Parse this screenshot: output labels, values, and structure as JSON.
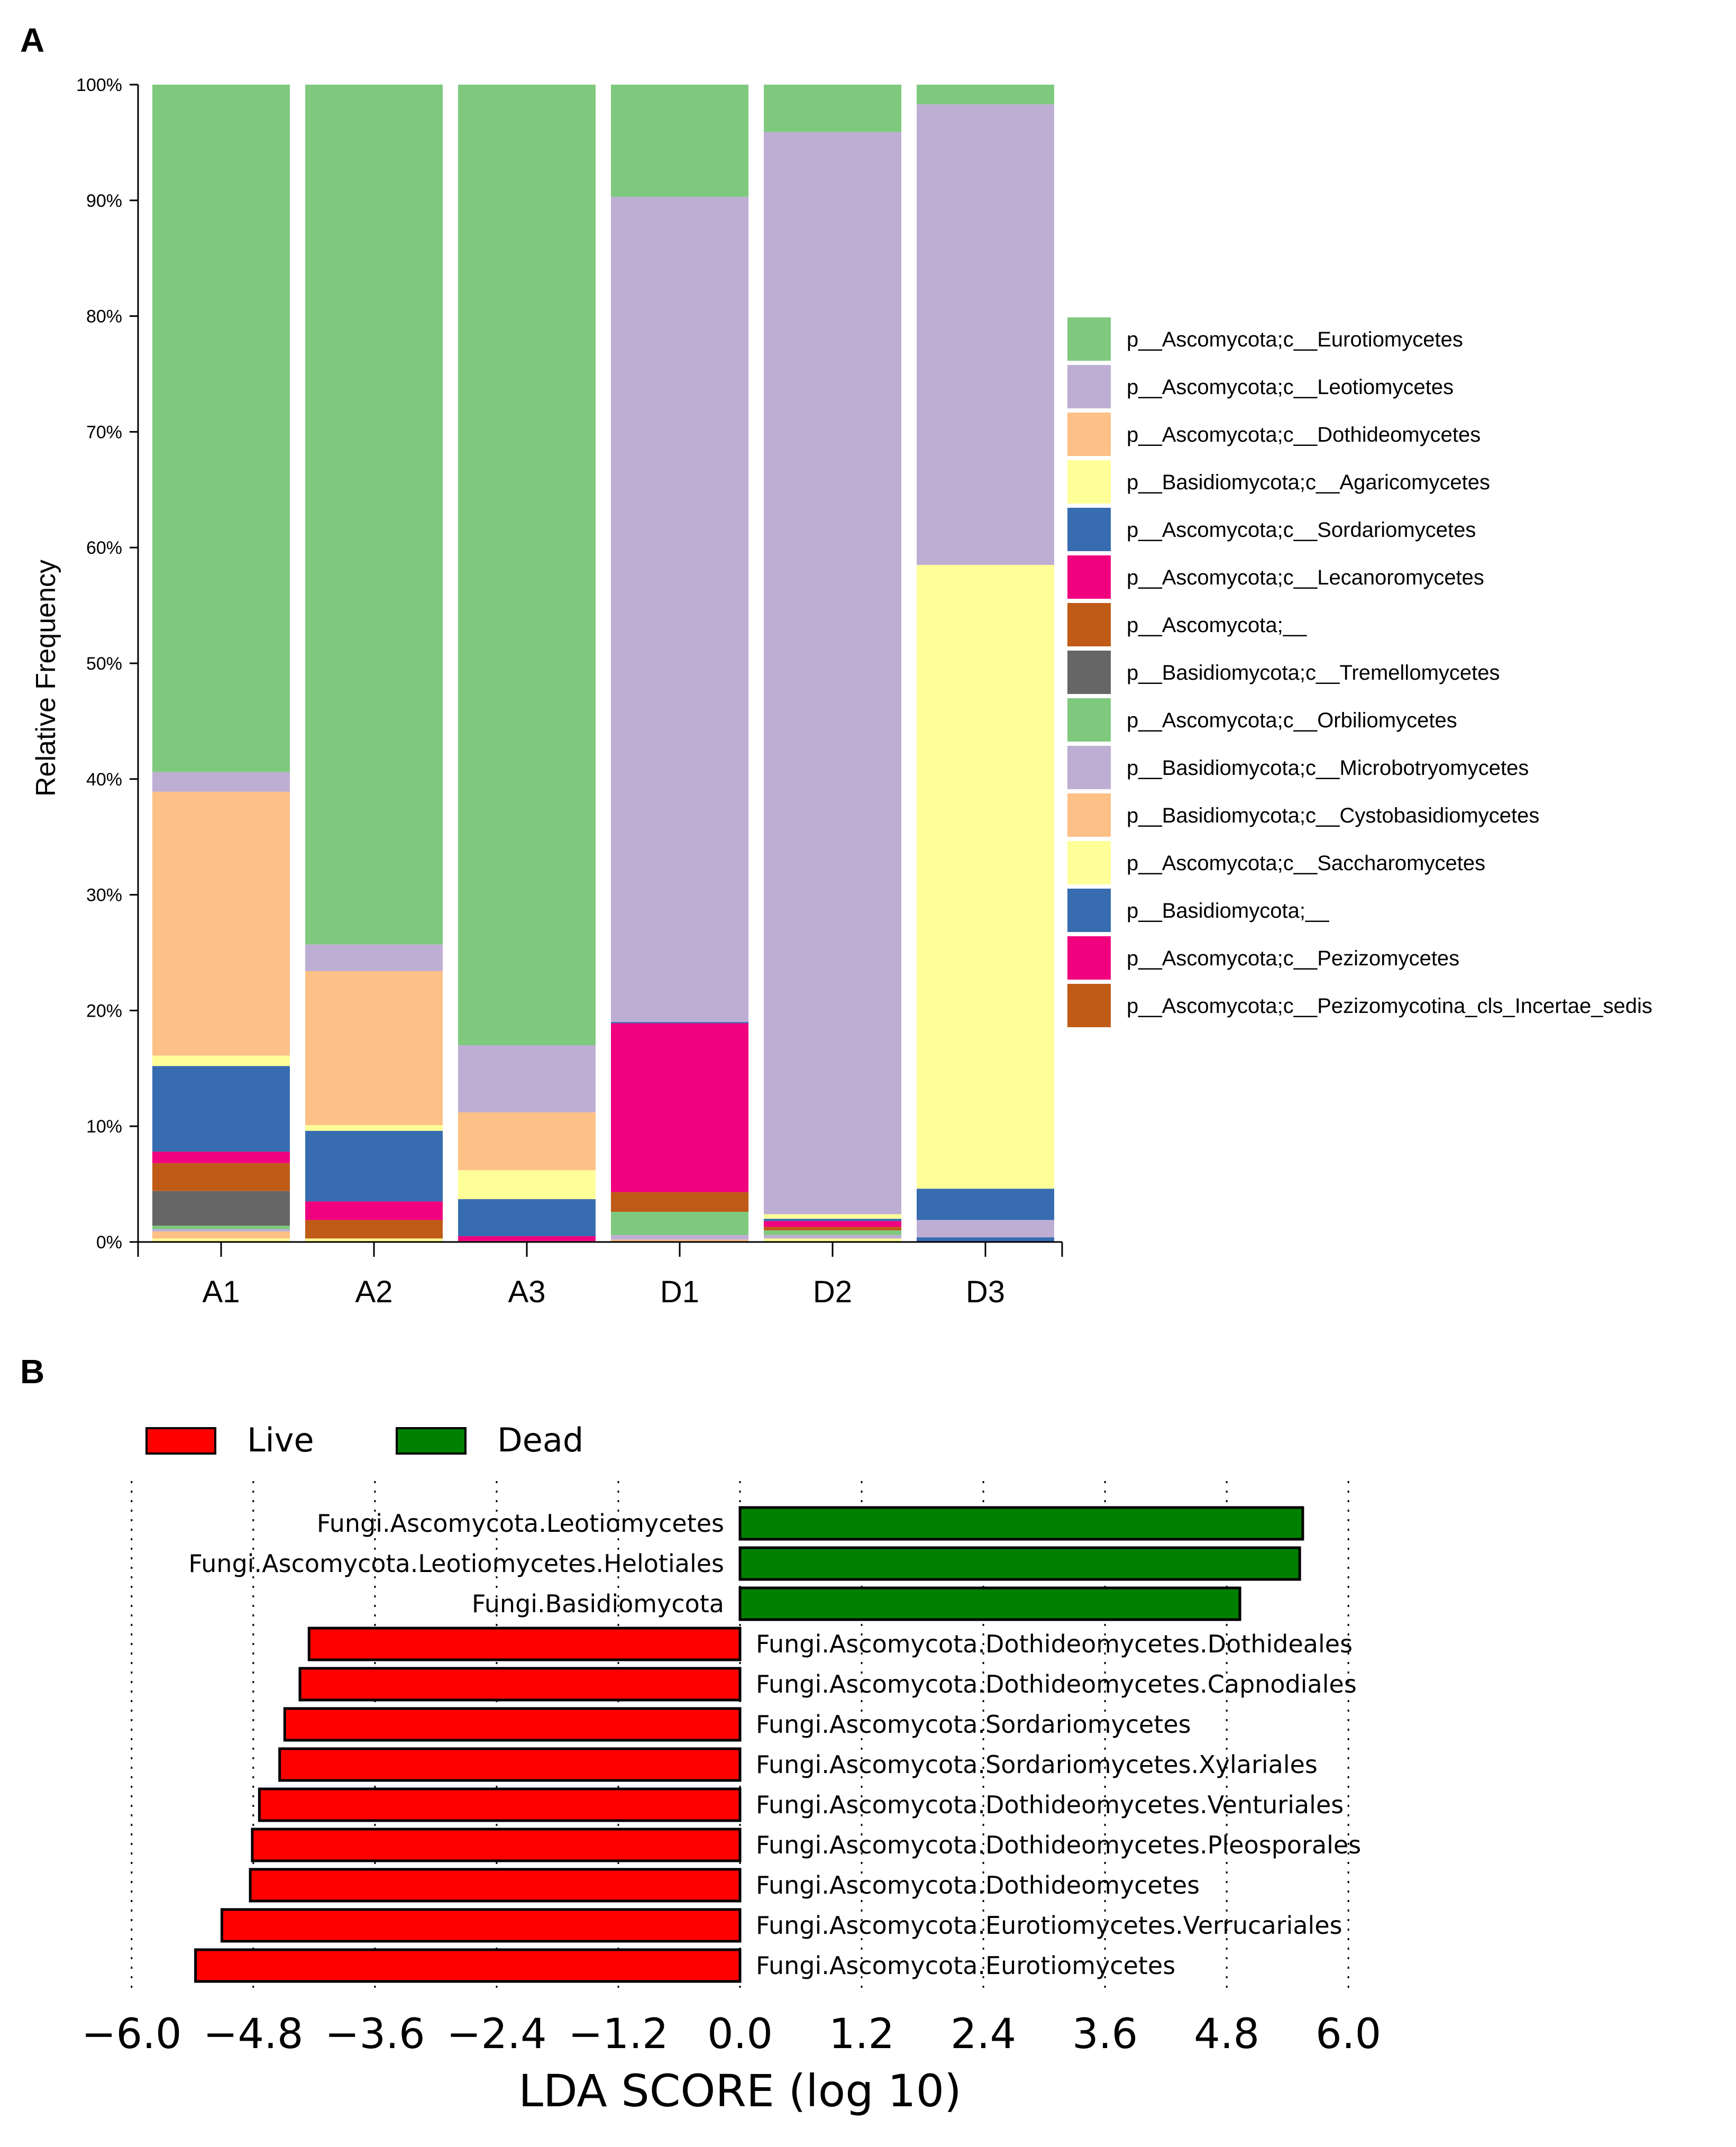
{
  "chart_data": [
    {
      "panel_label": "A",
      "type": "bar",
      "stacked": true,
      "ylabel": "Relative Frequency",
      "xlabel": "",
      "ylim": [
        0,
        100
      ],
      "y_ticks": [
        "0%",
        "10%",
        "20%",
        "30%",
        "40%",
        "50%",
        "60%",
        "70%",
        "80%",
        "90%",
        "100%"
      ],
      "categories": [
        "A1",
        "A2",
        "A3",
        "D1",
        "D2",
        "D3"
      ],
      "legend_position": "right",
      "series": [
        {
          "name": "p__Ascomycota;c__Eurotiomycetes",
          "color": "#7fc97f",
          "values": [
            59.4,
            74.3,
            83.0,
            9.7,
            4.1,
            1.7
          ]
        },
        {
          "name": "p__Ascomycota;c__Leotiomycetes",
          "color": "#beaed4",
          "values": [
            1.7,
            2.3,
            5.8,
            71.3,
            93.5,
            39.8
          ]
        },
        {
          "name": "p__Ascomycota;c__Dothideomycetes",
          "color": "#fdc086",
          "values": [
            22.8,
            13.3,
            5.0,
            0.0,
            0.0,
            0.0
          ]
        },
        {
          "name": "p__Basidiomycota;c__Agaricomycetes",
          "color": "#ffff99",
          "values": [
            0.9,
            0.5,
            2.5,
            0.0,
            0.4,
            53.9
          ]
        },
        {
          "name": "p__Ascomycota;c__Sordariomycetes",
          "color": "#386cb0",
          "values": [
            7.4,
            6.1,
            3.2,
            0.1,
            0.2,
            2.7
          ]
        },
        {
          "name": "p__Ascomycota;c__Lecanoromycetes",
          "color": "#f0027f",
          "values": [
            1.0,
            1.6,
            0.4,
            14.6,
            0.5,
            0.0
          ]
        },
        {
          "name": "p__Ascomycota;__",
          "color": "#bf5b17",
          "values": [
            2.4,
            1.6,
            0.0,
            1.7,
            0.3,
            0.0
          ]
        },
        {
          "name": "p__Basidiomycota;c__Tremellomycetes",
          "color": "#666666",
          "values": [
            3.0,
            0.0,
            0.0,
            0.0,
            0.0,
            0.0
          ]
        },
        {
          "name": "p__Ascomycota;c__Orbiliomycetes",
          "color": "#7fc97f",
          "values": [
            0.3,
            0.0,
            0.0,
            2.0,
            0.4,
            0.0
          ]
        },
        {
          "name": "p__Basidiomycota;c__Microbotryomycetes",
          "color": "#beaed4",
          "values": [
            0.2,
            0.0,
            0.0,
            0.4,
            0.3,
            1.5
          ]
        },
        {
          "name": "p__Basidiomycota;c__Cystobasidiomycetes",
          "color": "#fdc086",
          "values": [
            0.6,
            0.0,
            0.0,
            0.2,
            0.0,
            0.0
          ]
        },
        {
          "name": "p__Ascomycota;c__Saccharomycetes",
          "color": "#ffff99",
          "values": [
            0.3,
            0.3,
            0.0,
            0.0,
            0.3,
            0.0
          ]
        },
        {
          "name": "p__Basidiomycota;__",
          "color": "#386cb0",
          "values": [
            0.0,
            0.0,
            0.0,
            0.0,
            0.0,
            0.4
          ]
        },
        {
          "name": "p__Ascomycota;c__Pezizomycetes",
          "color": "#f0027f",
          "values": [
            0.0,
            0.0,
            0.1,
            0.0,
            0.0,
            0.0
          ]
        },
        {
          "name": "p__Ascomycota;c__Pezizomycotina_cls_Incertae_sedis",
          "color": "#bf5b17",
          "values": [
            0.0,
            0.0,
            0.0,
            0.0,
            0.0,
            0.0
          ]
        }
      ]
    },
    {
      "panel_label": "B",
      "type": "bar",
      "orientation": "horizontal",
      "xlabel": "LDA SCORE (log 10)",
      "xlim": [
        -6.0,
        6.0
      ],
      "x_ticks": [
        -6.0,
        -4.8,
        -3.6,
        -2.4,
        -1.2,
        0.0,
        1.2,
        2.4,
        3.6,
        4.8,
        6.0
      ],
      "x_tick_labels": [
        "−6.0",
        "−4.8",
        "−3.6",
        "−2.4",
        "−1.2",
        "0.0",
        "1.2",
        "2.4",
        "3.6",
        "4.8",
        "6.0"
      ],
      "grid": true,
      "legend_position": "top-left",
      "legend": [
        {
          "name": "Live",
          "color": "#ff0000"
        },
        {
          "name": "Dead",
          "color": "#008000"
        }
      ],
      "bars": [
        {
          "label": "Fungi.Ascomycota.Leotiomycetes",
          "value": 5.55,
          "group": "Dead"
        },
        {
          "label": "Fungi.Ascomycota.Leotiomycetes.Helotiales",
          "value": 5.52,
          "group": "Dead"
        },
        {
          "label": "Fungi.Basidiomycota",
          "value": 4.93,
          "group": "Dead"
        },
        {
          "label": "Fungi.Ascomycota.Dothideomycetes.Dothideales",
          "value": -4.25,
          "group": "Live"
        },
        {
          "label": "Fungi.Ascomycota.Dothideomycetes.Capnodiales",
          "value": -4.34,
          "group": "Live"
        },
        {
          "label": "Fungi.Ascomycota.Sordariomycetes",
          "value": -4.49,
          "group": "Live"
        },
        {
          "label": "Fungi.Ascomycota.Sordariomycetes.Xylariales",
          "value": -4.54,
          "group": "Live"
        },
        {
          "label": "Fungi.Ascomycota.Dothideomycetes.Venturiales",
          "value": -4.74,
          "group": "Live"
        },
        {
          "label": "Fungi.Ascomycota.Dothideomycetes.Pleosporales",
          "value": -4.81,
          "group": "Live"
        },
        {
          "label": "Fungi.Ascomycota.Dothideomycetes",
          "value": -4.83,
          "group": "Live"
        },
        {
          "label": "Fungi.Ascomycota.Eurotiomycetes.Verrucariales",
          "value": -5.11,
          "group": "Live"
        },
        {
          "label": "Fungi.Ascomycota.Eurotiomycetes",
          "value": -5.37,
          "group": "Live"
        }
      ]
    }
  ]
}
